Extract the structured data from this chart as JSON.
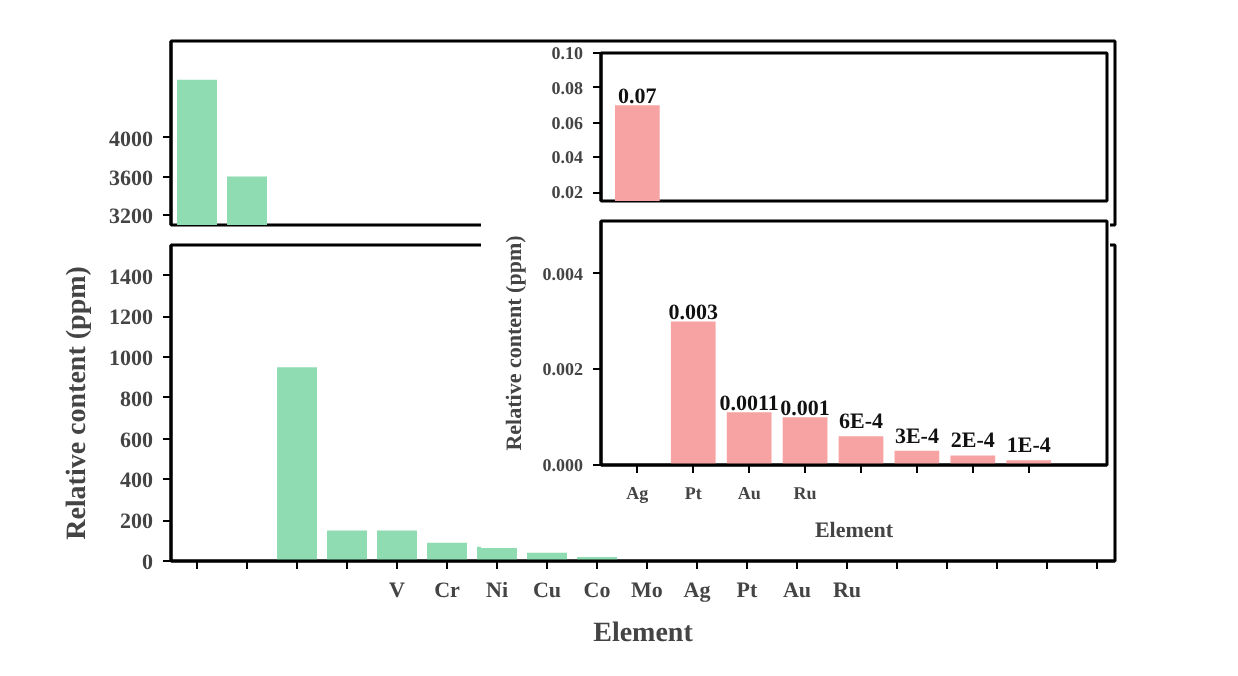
{
  "chart_data": [
    {
      "type": "bar",
      "categories": [
        null,
        null
      ],
      "values": [
        4600,
        3600
      ],
      "color": "#8fdcb2",
      "ylim": [
        3100,
        5000
      ],
      "yticks": [
        3200,
        3600,
        4000
      ],
      "tick_labels": "y"
    },
    {
      "type": "bar",
      "categories": [
        null,
        null,
        null,
        null,
        "V",
        "Cr",
        "Ni",
        "Cu",
        "Co",
        "Mo",
        "Ag",
        "Pt",
        "Au",
        "Ru",
        null,
        null,
        null,
        null,
        null
      ],
      "values": [
        null,
        null,
        950,
        150,
        150,
        90,
        70,
        40,
        20,
        0,
        0,
        0,
        0,
        0,
        0,
        0,
        0,
        0,
        null
      ],
      "color": "#8fdcb2",
      "ylim": [
        0,
        1550
      ],
      "yticks": [
        0,
        200,
        400,
        600,
        800,
        1000,
        1200,
        1400
      ],
      "xlabel": "Element",
      "ylabel": "Relative content (ppm)"
    },
    {
      "type": "bar",
      "categories": [
        null
      ],
      "values": [
        0.07
      ],
      "value_labels": [
        "0.07"
      ],
      "color": "#f7a3a3",
      "ylim": [
        0.015,
        0.1
      ],
      "yticks": [
        {
          "value": 0.02,
          "label": "0.02"
        },
        {
          "value": 0.04,
          "label": "0.04"
        },
        {
          "value": 0.06,
          "label": "0.06"
        },
        {
          "value": 0.08,
          "label": "0.08"
        },
        {
          "value": 0.1,
          "label": "0.10"
        }
      ],
      "tick_labels": "y"
    },
    {
      "type": "bar",
      "categories": [
        "Ag",
        "Pt",
        "Au",
        "Ru",
        null,
        null,
        null,
        null
      ],
      "values": [
        null,
        0.003,
        0.0011,
        0.001,
        0.0006,
        0.0003,
        0.0002,
        0.0001
      ],
      "value_labels": [
        null,
        "0.003",
        "0.0011",
        "0.001",
        "6E-4",
        "3E-4",
        "2E-4",
        "1E-4"
      ],
      "color": "#f7a3a3",
      "ylim": [
        0,
        0.0051
      ],
      "yticks": [
        {
          "value": 0,
          "label": "0.000"
        },
        {
          "value": 0.002,
          "label": "0.002"
        },
        {
          "value": 0.004,
          "label": "0.004"
        }
      ],
      "xlabel": "Element",
      "ylabel": "Relative content (ppm)"
    }
  ]
}
